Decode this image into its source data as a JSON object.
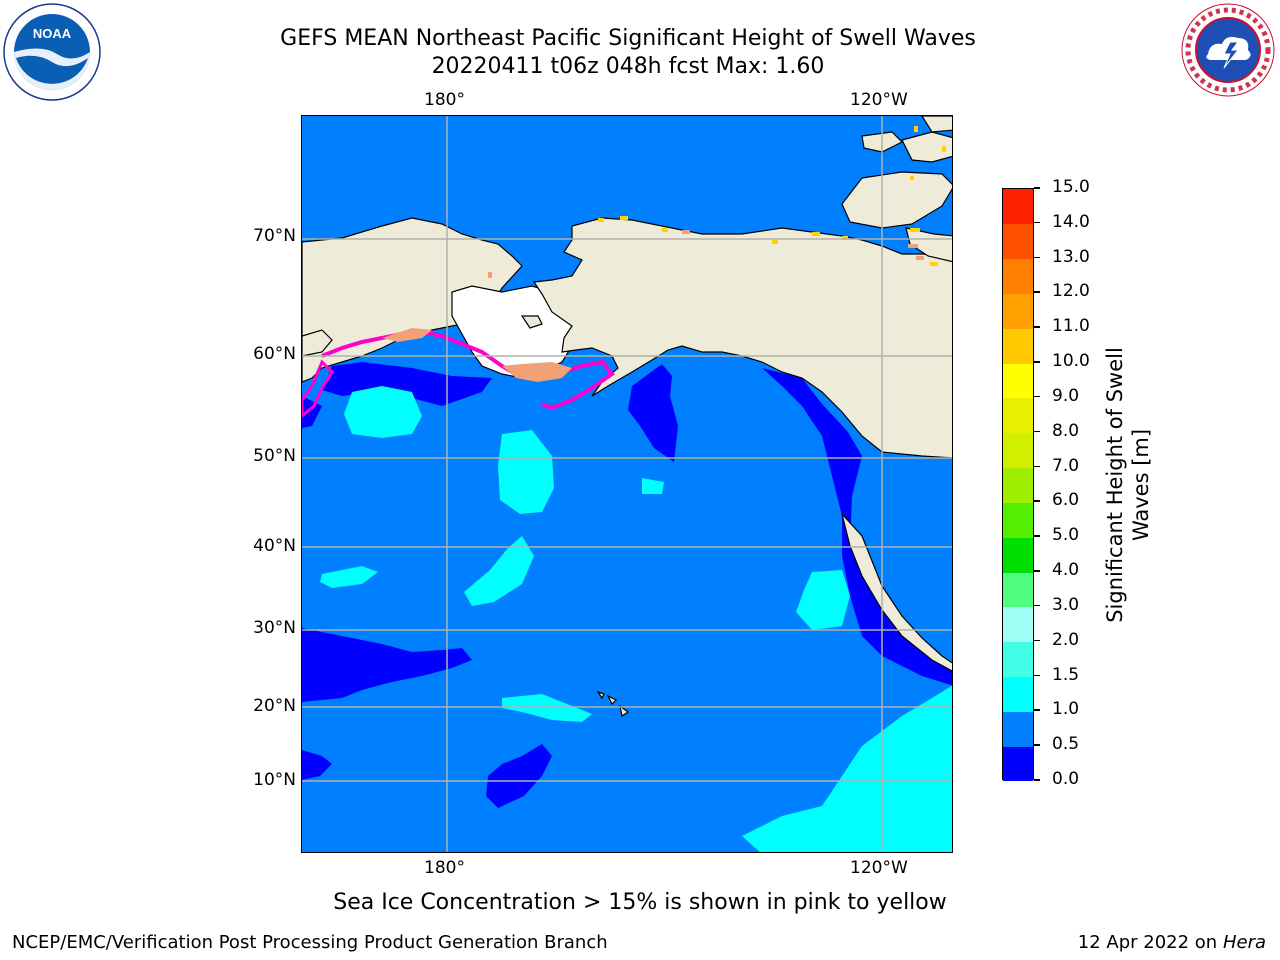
{
  "title": {
    "line1": "GEFS MEAN Northeast Pacific Significant Height of Swell Waves",
    "line2": "20220411 t06z 048h fcst   Max: 1.60"
  },
  "map": {
    "top_lon_labels": [
      "180°",
      "120°W"
    ],
    "bottom_lon_labels": [
      "180°",
      "120°W"
    ],
    "lat_labels": [
      "70°N",
      "60°N",
      "50°N",
      "40°N",
      "30°N",
      "20°N",
      "10°N"
    ],
    "colors": {
      "land": "#eeecd9",
      "ocean_mid": "#0080ff",
      "ocean_low": "#0000ff",
      "ocean_high": "#00ffff",
      "sea_ice_edge": "#ff00cc",
      "sea_ice_inner": "#f2a077",
      "grid": "#b0b0b0"
    }
  },
  "colorbar": {
    "label_line1": "Significant Height of Swell",
    "label_line2": "Waves [m]",
    "ticks": [
      "0.0",
      "0.5",
      "1.0",
      "1.5",
      "2.0",
      "3.0",
      "4.0",
      "5.0",
      "6.0",
      "7.0",
      "8.0",
      "9.0",
      "10.0",
      "11.0",
      "12.0",
      "13.0",
      "14.0",
      "15.0"
    ],
    "colors": [
      "#0000ff",
      "#0080ff",
      "#00ffff",
      "#40ffe6",
      "#a0fff4",
      "#50ff80",
      "#00e000",
      "#55ee00",
      "#a0ee00",
      "#d0f000",
      "#e6f000",
      "#ffff00",
      "#ffc800",
      "#ffa000",
      "#ff8000",
      "#ff5000",
      "#ff2000"
    ]
  },
  "footer": {
    "note": "Sea Ice Concentration > 15% is shown in pink to yellow",
    "left": "NCEP/EMC/Verification Post Processing Product Generation Branch",
    "right_prefix": "12 Apr 2022 on ",
    "right_machine": "Hera"
  },
  "logos": {
    "left": "NOAA",
    "right": "NATIONAL WEATHER SERVICE"
  }
}
